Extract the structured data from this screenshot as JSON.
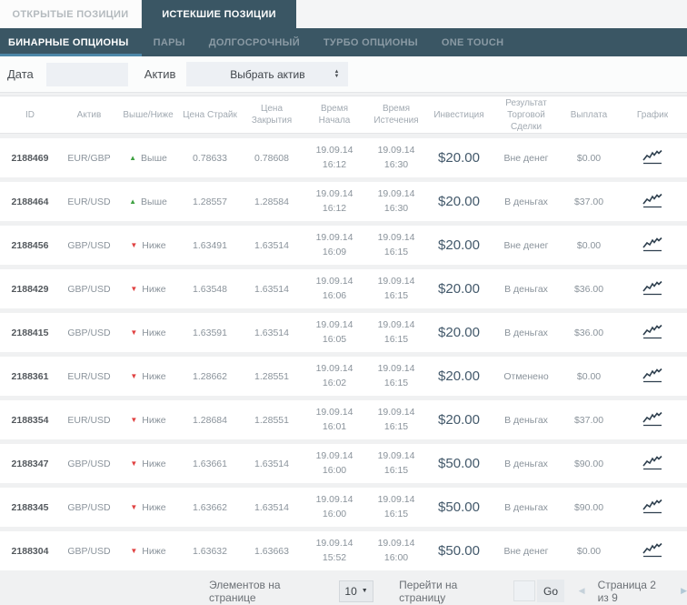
{
  "tabs": {
    "open": "ОТКРЫТЫЕ ПОЗИЦИИ",
    "expired": "ИСТЕКШИЕ ПОЗИЦИИ"
  },
  "nav": {
    "items": [
      "БИНАРНЫЕ ОПЦИОНЫ",
      "ПАРЫ",
      "ДОЛГОСРОЧНЫЙ",
      "ТУРБО ОПЦИОНЫ",
      "ONE TOUCH"
    ],
    "active_index": 0
  },
  "filters": {
    "date_label": "Дата",
    "date_value": "",
    "asset_label": "Актив",
    "asset_selected": "Выбрать актив"
  },
  "table": {
    "headers": [
      "ID",
      "Актив",
      "Выше/Ниже",
      "Цена Страйк",
      "Цена Закрытия",
      "Время Начала",
      "Время Истечения",
      "Инвестиция",
      "Результат Торговой Сделки",
      "Выплата",
      "График"
    ],
    "rows": [
      {
        "id": "2188469",
        "asset": "EUR/GBP",
        "direction": "up",
        "direction_label": "Выше",
        "strike": "0.78633",
        "close": "0.78608",
        "start_date": "19.09.14",
        "start_time": "16:12",
        "expiry_date": "19.09.14",
        "expiry_time": "16:30",
        "investment": "$20.00",
        "result": "Вне денег",
        "payout": "$0.00"
      },
      {
        "id": "2188464",
        "asset": "EUR/USD",
        "direction": "up",
        "direction_label": "Выше",
        "strike": "1.28557",
        "close": "1.28584",
        "start_date": "19.09.14",
        "start_time": "16:12",
        "expiry_date": "19.09.14",
        "expiry_time": "16:30",
        "investment": "$20.00",
        "result": "В деньгах",
        "payout": "$37.00"
      },
      {
        "id": "2188456",
        "asset": "GBP/USD",
        "direction": "down",
        "direction_label": "Ниже",
        "strike": "1.63491",
        "close": "1.63514",
        "start_date": "19.09.14",
        "start_time": "16:09",
        "expiry_date": "19.09.14",
        "expiry_time": "16:15",
        "investment": "$20.00",
        "result": "Вне денег",
        "payout": "$0.00"
      },
      {
        "id": "2188429",
        "asset": "GBP/USD",
        "direction": "down",
        "direction_label": "Ниже",
        "strike": "1.63548",
        "close": "1.63514",
        "start_date": "19.09.14",
        "start_time": "16:06",
        "expiry_date": "19.09.14",
        "expiry_time": "16:15",
        "investment": "$20.00",
        "result": "В деньгах",
        "payout": "$36.00"
      },
      {
        "id": "2188415",
        "asset": "GBP/USD",
        "direction": "down",
        "direction_label": "Ниже",
        "strike": "1.63591",
        "close": "1.63514",
        "start_date": "19.09.14",
        "start_time": "16:05",
        "expiry_date": "19.09.14",
        "expiry_time": "16:15",
        "investment": "$20.00",
        "result": "В деньгах",
        "payout": "$36.00"
      },
      {
        "id": "2188361",
        "asset": "EUR/USD",
        "direction": "down",
        "direction_label": "Ниже",
        "strike": "1.28662",
        "close": "1.28551",
        "start_date": "19.09.14",
        "start_time": "16:02",
        "expiry_date": "19.09.14",
        "expiry_time": "16:15",
        "investment": "$20.00",
        "result": "Отменено",
        "payout": "$0.00"
      },
      {
        "id": "2188354",
        "asset": "EUR/USD",
        "direction": "down",
        "direction_label": "Ниже",
        "strike": "1.28684",
        "close": "1.28551",
        "start_date": "19.09.14",
        "start_time": "16:01",
        "expiry_date": "19.09.14",
        "expiry_time": "16:15",
        "investment": "$20.00",
        "result": "В деньгах",
        "payout": "$37.00"
      },
      {
        "id": "2188347",
        "asset": "GBP/USD",
        "direction": "down",
        "direction_label": "Ниже",
        "strike": "1.63661",
        "close": "1.63514",
        "start_date": "19.09.14",
        "start_time": "16:00",
        "expiry_date": "19.09.14",
        "expiry_time": "16:15",
        "investment": "$50.00",
        "result": "В деньгах",
        "payout": "$90.00"
      },
      {
        "id": "2188345",
        "asset": "GBP/USD",
        "direction": "down",
        "direction_label": "Ниже",
        "strike": "1.63662",
        "close": "1.63514",
        "start_date": "19.09.14",
        "start_time": "16:00",
        "expiry_date": "19.09.14",
        "expiry_time": "16:15",
        "investment": "$50.00",
        "result": "В деньгах",
        "payout": "$90.00"
      },
      {
        "id": "2188304",
        "asset": "GBP/USD",
        "direction": "down",
        "direction_label": "Ниже",
        "strike": "1.63632",
        "close": "1.63663",
        "start_date": "19.09.14",
        "start_time": "15:52",
        "expiry_date": "19.09.14",
        "expiry_time": "16:00",
        "investment": "$50.00",
        "result": "Вне денег",
        "payout": "$0.00"
      }
    ]
  },
  "pagination": {
    "items_per_page_label": "Элементов на странице",
    "items_per_page": "10",
    "goto_label": "Перейти на страницу",
    "goto_value": "",
    "go_label": "Go",
    "page_status": "Страница 2 из 9"
  },
  "icons": {
    "direction_up": "▲",
    "direction_down": "▼",
    "select_arrow_up": "▲",
    "select_arrow_down": "▼",
    "dropdown_arrow": "▼",
    "prev": "◀",
    "next": "▶"
  },
  "colors": {
    "header_dark": "#3a5664",
    "accent_underline": "#4d87a8",
    "positive_green": "#3fa142",
    "negative_red": "#e04141",
    "page_bg": "#f0f1f2",
    "investment_text": "#42586a"
  }
}
